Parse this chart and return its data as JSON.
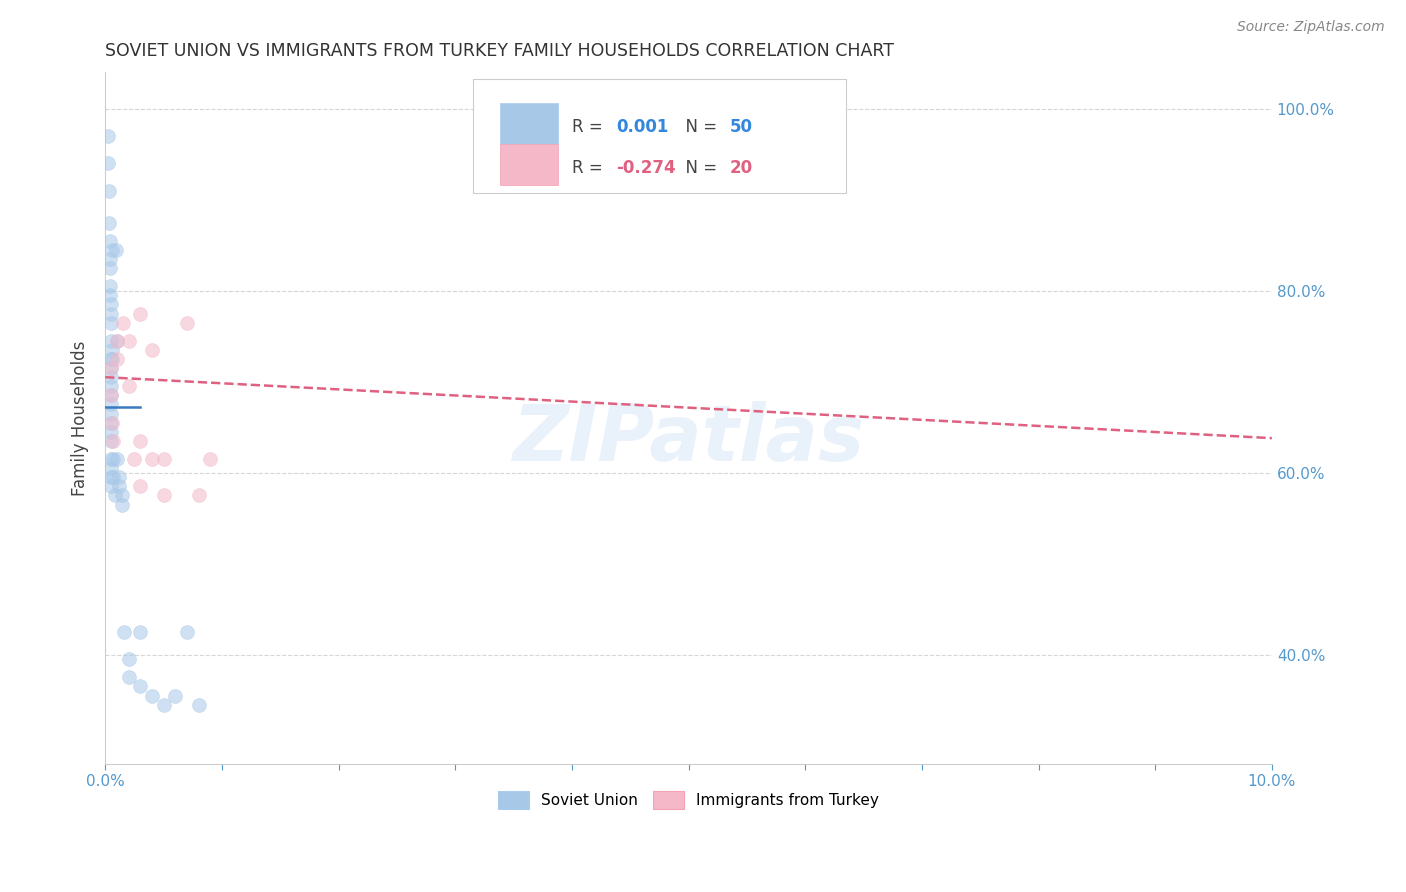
{
  "title": "SOVIET UNION VS IMMIGRANTS FROM TURKEY FAMILY HOUSEHOLDS CORRELATION CHART",
  "source": "Source: ZipAtlas.com",
  "ylabel": "Family Households",
  "blue_color": "#a8c8e8",
  "pink_color": "#f4b8c8",
  "blue_line_color": "#3a7abf",
  "pink_line_color": "#e06080",
  "dashed_line_color": "#88aadd",
  "background_color": "#ffffff",
  "grid_color": "#cccccc",
  "title_color": "#333333",
  "axis_color": "#5599cc",
  "text_color": "#444444",
  "watermark": "ZIPatlas",
  "soviet_x": [
    0.0002,
    0.0002,
    0.0003,
    0.0003,
    0.0004,
    0.0004,
    0.0004,
    0.0004,
    0.0004,
    0.0005,
    0.0005,
    0.0005,
    0.0005,
    0.0005,
    0.0005,
    0.0005,
    0.0005,
    0.0005,
    0.0005,
    0.0005,
    0.0005,
    0.0005,
    0.0005,
    0.0005,
    0.0005,
    0.0005,
    0.0005,
    0.0006,
    0.0006,
    0.0006,
    0.0007,
    0.0007,
    0.0008,
    0.0009,
    0.001,
    0.001,
    0.0012,
    0.0012,
    0.0014,
    0.0014,
    0.0016,
    0.002,
    0.002,
    0.003,
    0.003,
    0.004,
    0.005,
    0.006,
    0.007,
    0.008
  ],
  "soviet_y": [
    0.97,
    0.94,
    0.91,
    0.875,
    0.855,
    0.835,
    0.825,
    0.805,
    0.795,
    0.785,
    0.775,
    0.765,
    0.745,
    0.725,
    0.715,
    0.705,
    0.695,
    0.685,
    0.675,
    0.665,
    0.655,
    0.645,
    0.635,
    0.615,
    0.605,
    0.595,
    0.585,
    0.845,
    0.735,
    0.725,
    0.615,
    0.595,
    0.575,
    0.845,
    0.745,
    0.615,
    0.595,
    0.585,
    0.575,
    0.565,
    0.425,
    0.395,
    0.375,
    0.365,
    0.425,
    0.355,
    0.345,
    0.355,
    0.425,
    0.345
  ],
  "turkey_x": [
    0.0005,
    0.0005,
    0.0006,
    0.0007,
    0.001,
    0.001,
    0.0015,
    0.002,
    0.002,
    0.0025,
    0.003,
    0.003,
    0.003,
    0.004,
    0.004,
    0.005,
    0.005,
    0.007,
    0.008,
    0.009
  ],
  "turkey_y": [
    0.715,
    0.685,
    0.655,
    0.635,
    0.745,
    0.725,
    0.765,
    0.745,
    0.695,
    0.615,
    0.775,
    0.635,
    0.585,
    0.735,
    0.615,
    0.615,
    0.575,
    0.765,
    0.575,
    0.615
  ],
  "soviet_trend_x": [
    0.0,
    0.003
  ],
  "soviet_trend_y": [
    0.672,
    0.672
  ],
  "turkey_trend_x": [
    0.0,
    0.1
  ],
  "turkey_trend_y": [
    0.705,
    0.638
  ],
  "xlim": [
    0.0,
    0.1
  ],
  "ylim": [
    0.28,
    1.04
  ],
  "ytick_positions": [
    0.4,
    0.6,
    0.8,
    1.0
  ],
  "ytick_labels": [
    "40.0%",
    "60.0%",
    "80.0%",
    "100.0%"
  ],
  "marker_size": 100,
  "marker_alpha": 0.55,
  "line_width": 1.8
}
